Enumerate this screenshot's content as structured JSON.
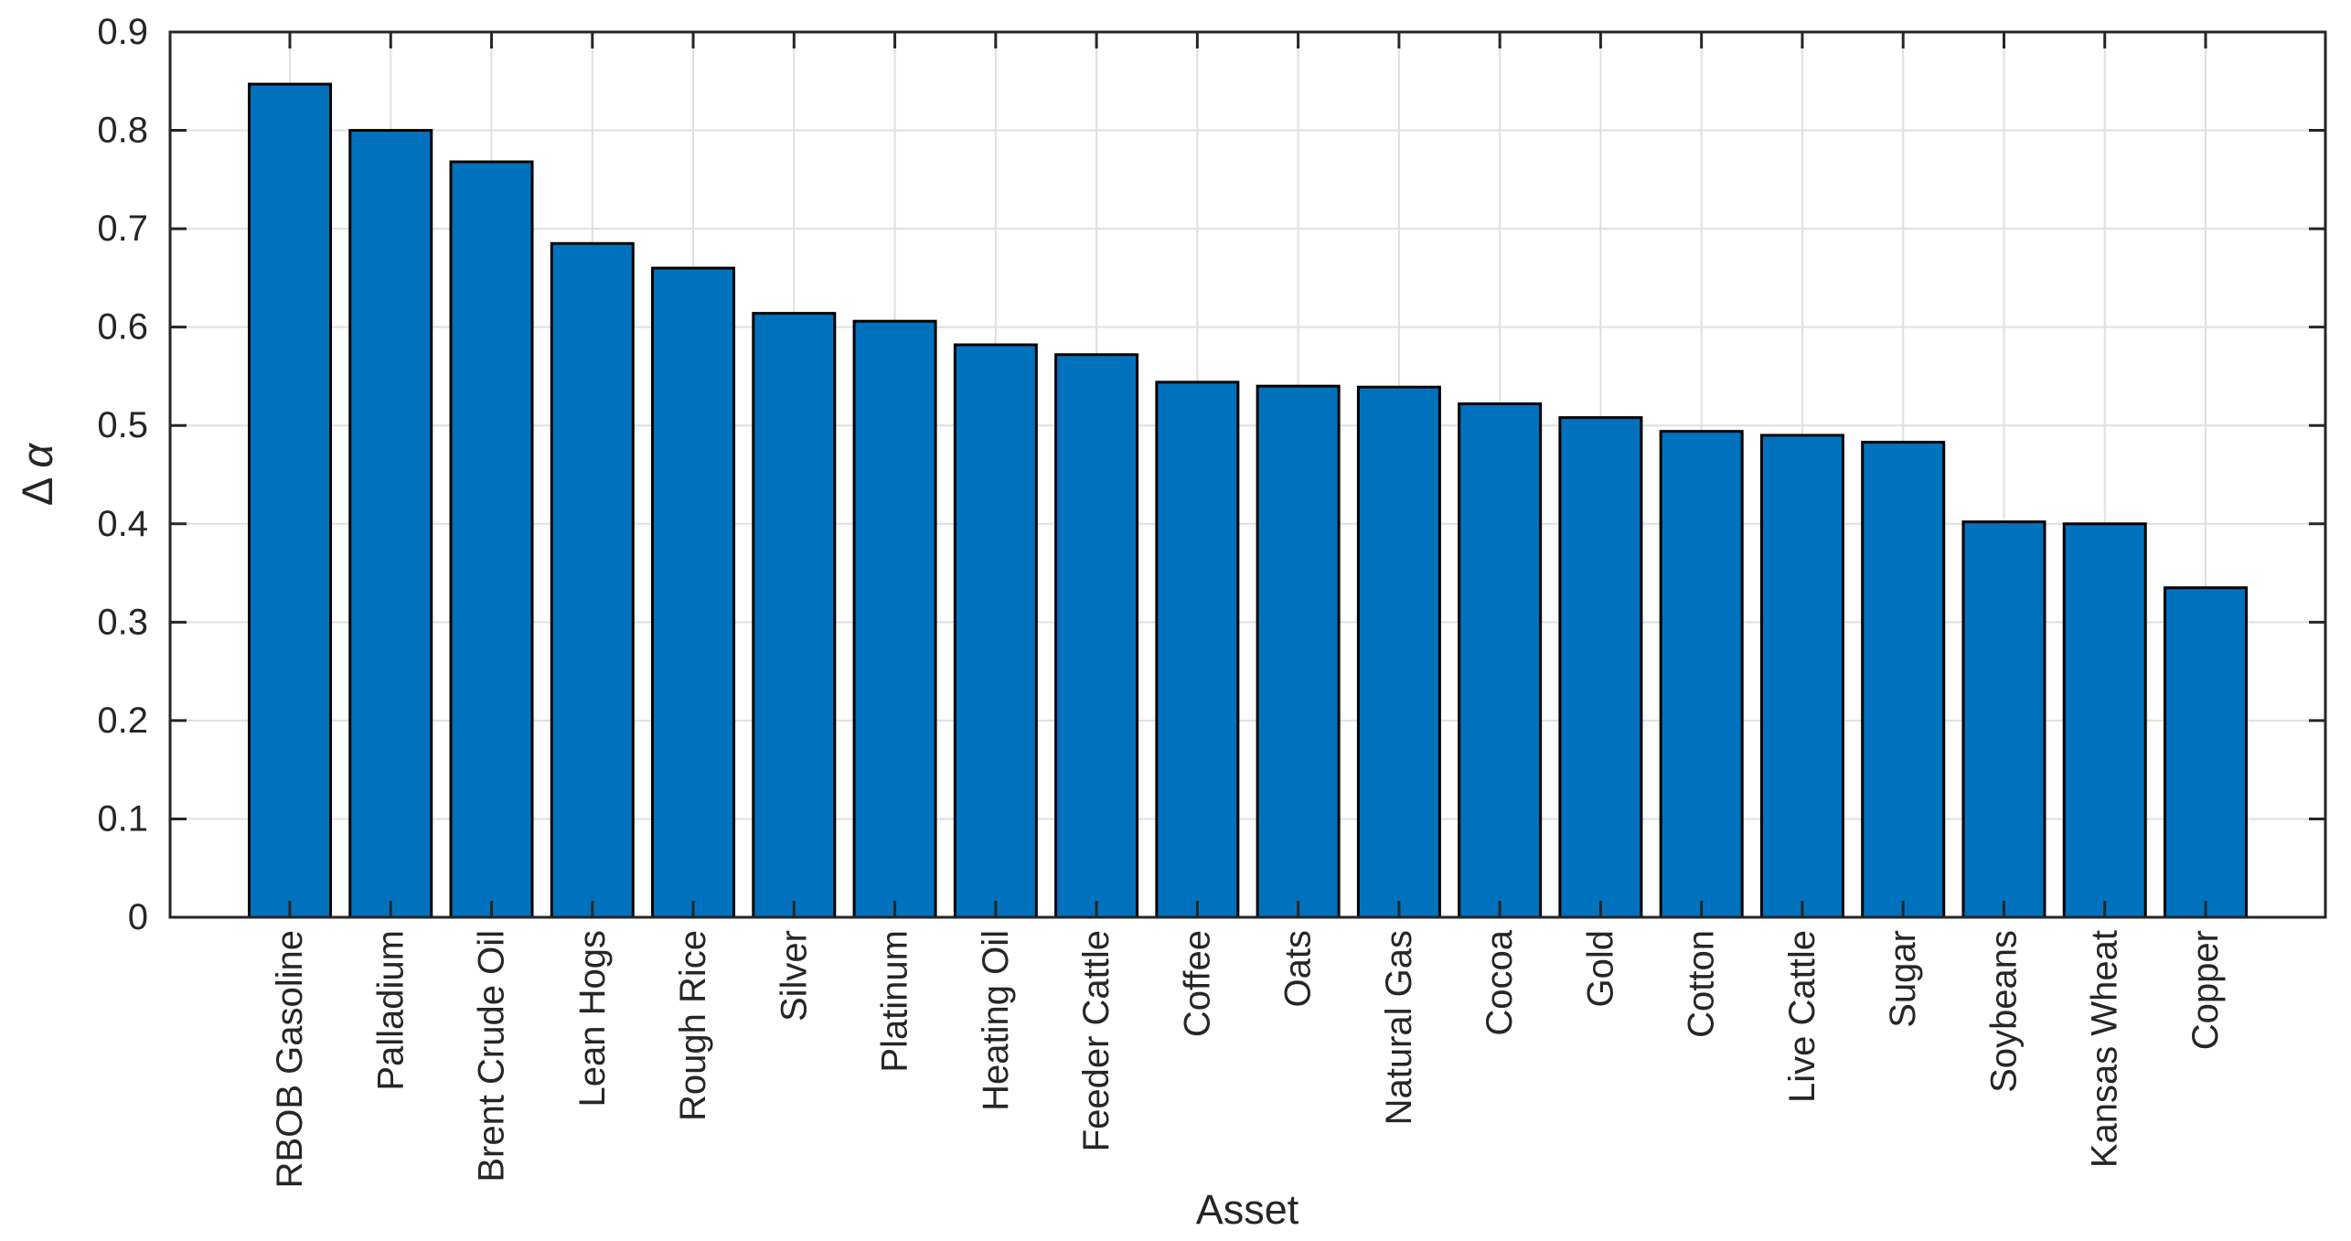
{
  "chart_data": {
    "type": "bar",
    "title": "",
    "xlabel": "Asset",
    "ylabel": "Δα",
    "ylabel_delta": "Δ",
    "ylabel_alpha": "α",
    "categories": [
      "RBOB Gasoline",
      "Palladium",
      "Brent Crude Oil",
      "Lean Hogs",
      "Rough Rice",
      "Silver",
      "Platinum",
      "Heating Oil",
      "Feeder Cattle",
      "Coffee",
      "Oats",
      "Natural Gas",
      "Cocoa",
      "Gold",
      "Cotton",
      "Live Cattle",
      "Sugar",
      "Soybeans",
      "Kansas Wheat",
      "Copper"
    ],
    "values": [
      0.847,
      0.8,
      0.768,
      0.685,
      0.66,
      0.614,
      0.606,
      0.582,
      0.572,
      0.544,
      0.54,
      0.539,
      0.522,
      0.508,
      0.494,
      0.49,
      0.483,
      0.402,
      0.4,
      0.335
    ],
    "ylim": [
      0,
      0.9
    ],
    "yticks": [
      0,
      0.1,
      0.2,
      0.3,
      0.4,
      0.5,
      0.6,
      0.7,
      0.8,
      0.9
    ],
    "ytick_labels": [
      "0",
      "0.1",
      "0.2",
      "0.3",
      "0.4",
      "0.5",
      "0.6",
      "0.7",
      "0.8",
      "0.9"
    ],
    "grid": true,
    "legend": null,
    "bar_color": "#0072BD",
    "bar_edge_color": "#000000",
    "axis_color": "#262626",
    "grid_color": "#dfdfdf"
  }
}
